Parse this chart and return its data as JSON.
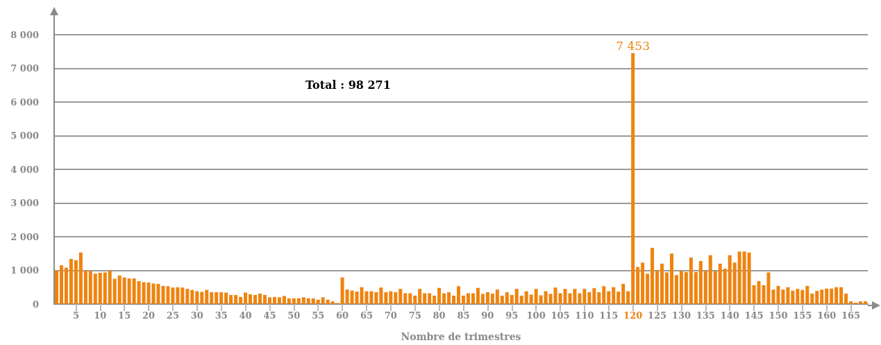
{
  "chart_data": {
    "type": "bar",
    "xlabel": "Nombre de trimestres",
    "annotations": [
      "Total : 98 271"
    ],
    "categories": [
      null,
      null,
      null,
      null,
      "5",
      null,
      null,
      null,
      null,
      "10",
      null,
      null,
      null,
      null,
      "15",
      null,
      null,
      null,
      null,
      "20",
      null,
      null,
      null,
      null,
      "25",
      null,
      null,
      null,
      null,
      "30",
      null,
      null,
      null,
      null,
      "35",
      null,
      null,
      null,
      null,
      "40",
      null,
      null,
      null,
      null,
      "45",
      null,
      null,
      null,
      null,
      "50",
      null,
      null,
      null,
      null,
      "55",
      null,
      null,
      null,
      null,
      "60",
      null,
      null,
      null,
      null,
      "65",
      null,
      null,
      null,
      null,
      "70",
      null,
      null,
      null,
      null,
      "75",
      null,
      null,
      null,
      null,
      "80",
      null,
      null,
      null,
      null,
      "85",
      null,
      null,
      null,
      null,
      "90",
      null,
      null,
      null,
      null,
      "95",
      null,
      null,
      null,
      null,
      "100",
      null,
      null,
      null,
      null,
      "105",
      null,
      null,
      null,
      null,
      "110",
      null,
      null,
      null,
      null,
      "115",
      null,
      null,
      null,
      null,
      "120",
      null,
      null,
      null,
      null,
      "125",
      null,
      null,
      null,
      null,
      "130",
      null,
      null,
      null,
      null,
      "135",
      null,
      null,
      null,
      null,
      "140",
      null,
      null,
      null,
      null,
      "145",
      null,
      null,
      null,
      null,
      "150",
      null,
      null,
      null,
      null,
      "155",
      null,
      null,
      null,
      null,
      "160",
      null,
      null,
      null,
      null,
      "165",
      null,
      null,
      null
    ],
    "values": [
      1000,
      1150,
      1080,
      1340,
      1300,
      1530,
      1000,
      980,
      900,
      930,
      940,
      990,
      750,
      850,
      790,
      760,
      760,
      680,
      650,
      640,
      610,
      600,
      540,
      530,
      490,
      500,
      490,
      450,
      420,
      380,
      360,
      420,
      350,
      350,
      350,
      340,
      270,
      270,
      210,
      340,
      290,
      270,
      310,
      270,
      200,
      210,
      200,
      240,
      170,
      170,
      170,
      200,
      170,
      170,
      130,
      200,
      130,
      80,
      30,
      790,
      430,
      400,
      370,
      500,
      380,
      380,
      350,
      490,
      350,
      380,
      350,
      450,
      320,
      320,
      250,
      450,
      320,
      320,
      250,
      480,
      320,
      350,
      250,
      530,
      250,
      320,
      320,
      480,
      300,
      350,
      310,
      430,
      250,
      350,
      270,
      450,
      250,
      380,
      280,
      450,
      260,
      380,
      300,
      490,
      320,
      450,
      320,
      450,
      320,
      450,
      350,
      470,
      350,
      530,
      380,
      500,
      370,
      600,
      380,
      7453,
      1100,
      1230,
      900,
      1670,
      1000,
      1200,
      940,
      1500,
      860,
      990,
      950,
      1380,
      950,
      1280,
      990,
      1450,
      970,
      1200,
      1050,
      1450,
      1230,
      1560,
      1560,
      1530,
      560,
      680,
      560,
      940,
      430,
      540,
      430,
      500,
      400,
      450,
      420,
      540,
      310,
      390,
      430,
      460,
      460,
      500,
      500,
      310,
      80,
      40,
      80,
      80
    ],
    "value_labels": [
      null,
      null,
      null,
      null,
      null,
      null,
      null,
      null,
      null,
      null,
      null,
      null,
      null,
      null,
      null,
      null,
      null,
      null,
      null,
      null,
      null,
      null,
      null,
      null,
      null,
      null,
      null,
      null,
      null,
      null,
      null,
      null,
      null,
      null,
      null,
      null,
      null,
      null,
      null,
      null,
      null,
      null,
      null,
      null,
      null,
      null,
      null,
      null,
      null,
      null,
      null,
      null,
      null,
      null,
      null,
      null,
      null,
      null,
      null,
      null,
      null,
      null,
      null,
      null,
      null,
      null,
      null,
      null,
      null,
      null,
      null,
      null,
      null,
      null,
      null,
      null,
      null,
      null,
      null,
      null,
      null,
      null,
      null,
      null,
      null,
      null,
      null,
      null,
      null,
      null,
      null,
      null,
      null,
      null,
      null,
      null,
      null,
      null,
      null,
      null,
      null,
      null,
      null,
      null,
      null,
      null,
      null,
      null,
      null,
      null,
      null,
      null,
      null,
      null,
      null,
      null,
      null,
      null,
      null,
      "7 453",
      null,
      null,
      null,
      null,
      null,
      null,
      null,
      null,
      null,
      null,
      null,
      null,
      null,
      null,
      null,
      null,
      null,
      null,
      null,
      null,
      null,
      null,
      null,
      null,
      null,
      null,
      null,
      null,
      null,
      null,
      null,
      null,
      null,
      null,
      null,
      null,
      null,
      null,
      null,
      null,
      null,
      null,
      null,
      null,
      null,
      null,
      null,
      null
    ],
    "color": "#ee8410",
    "ylim": [
      0,
      8000
    ],
    "yticks": [
      {
        "value": 0,
        "label": "0"
      },
      {
        "value": 1000,
        "label": "1 000"
      },
      {
        "value": 2000,
        "label": "2 000"
      },
      {
        "value": 3000,
        "label": "3 000"
      },
      {
        "value": 4000,
        "label": "4 000"
      },
      {
        "value": 5000,
        "label": "5 000"
      },
      {
        "value": 6000,
        "label": "6 000"
      },
      {
        "value": 7000,
        "label": "7 000"
      },
      {
        "value": 8000,
        "label": "8 000"
      }
    ],
    "grid": "y"
  }
}
